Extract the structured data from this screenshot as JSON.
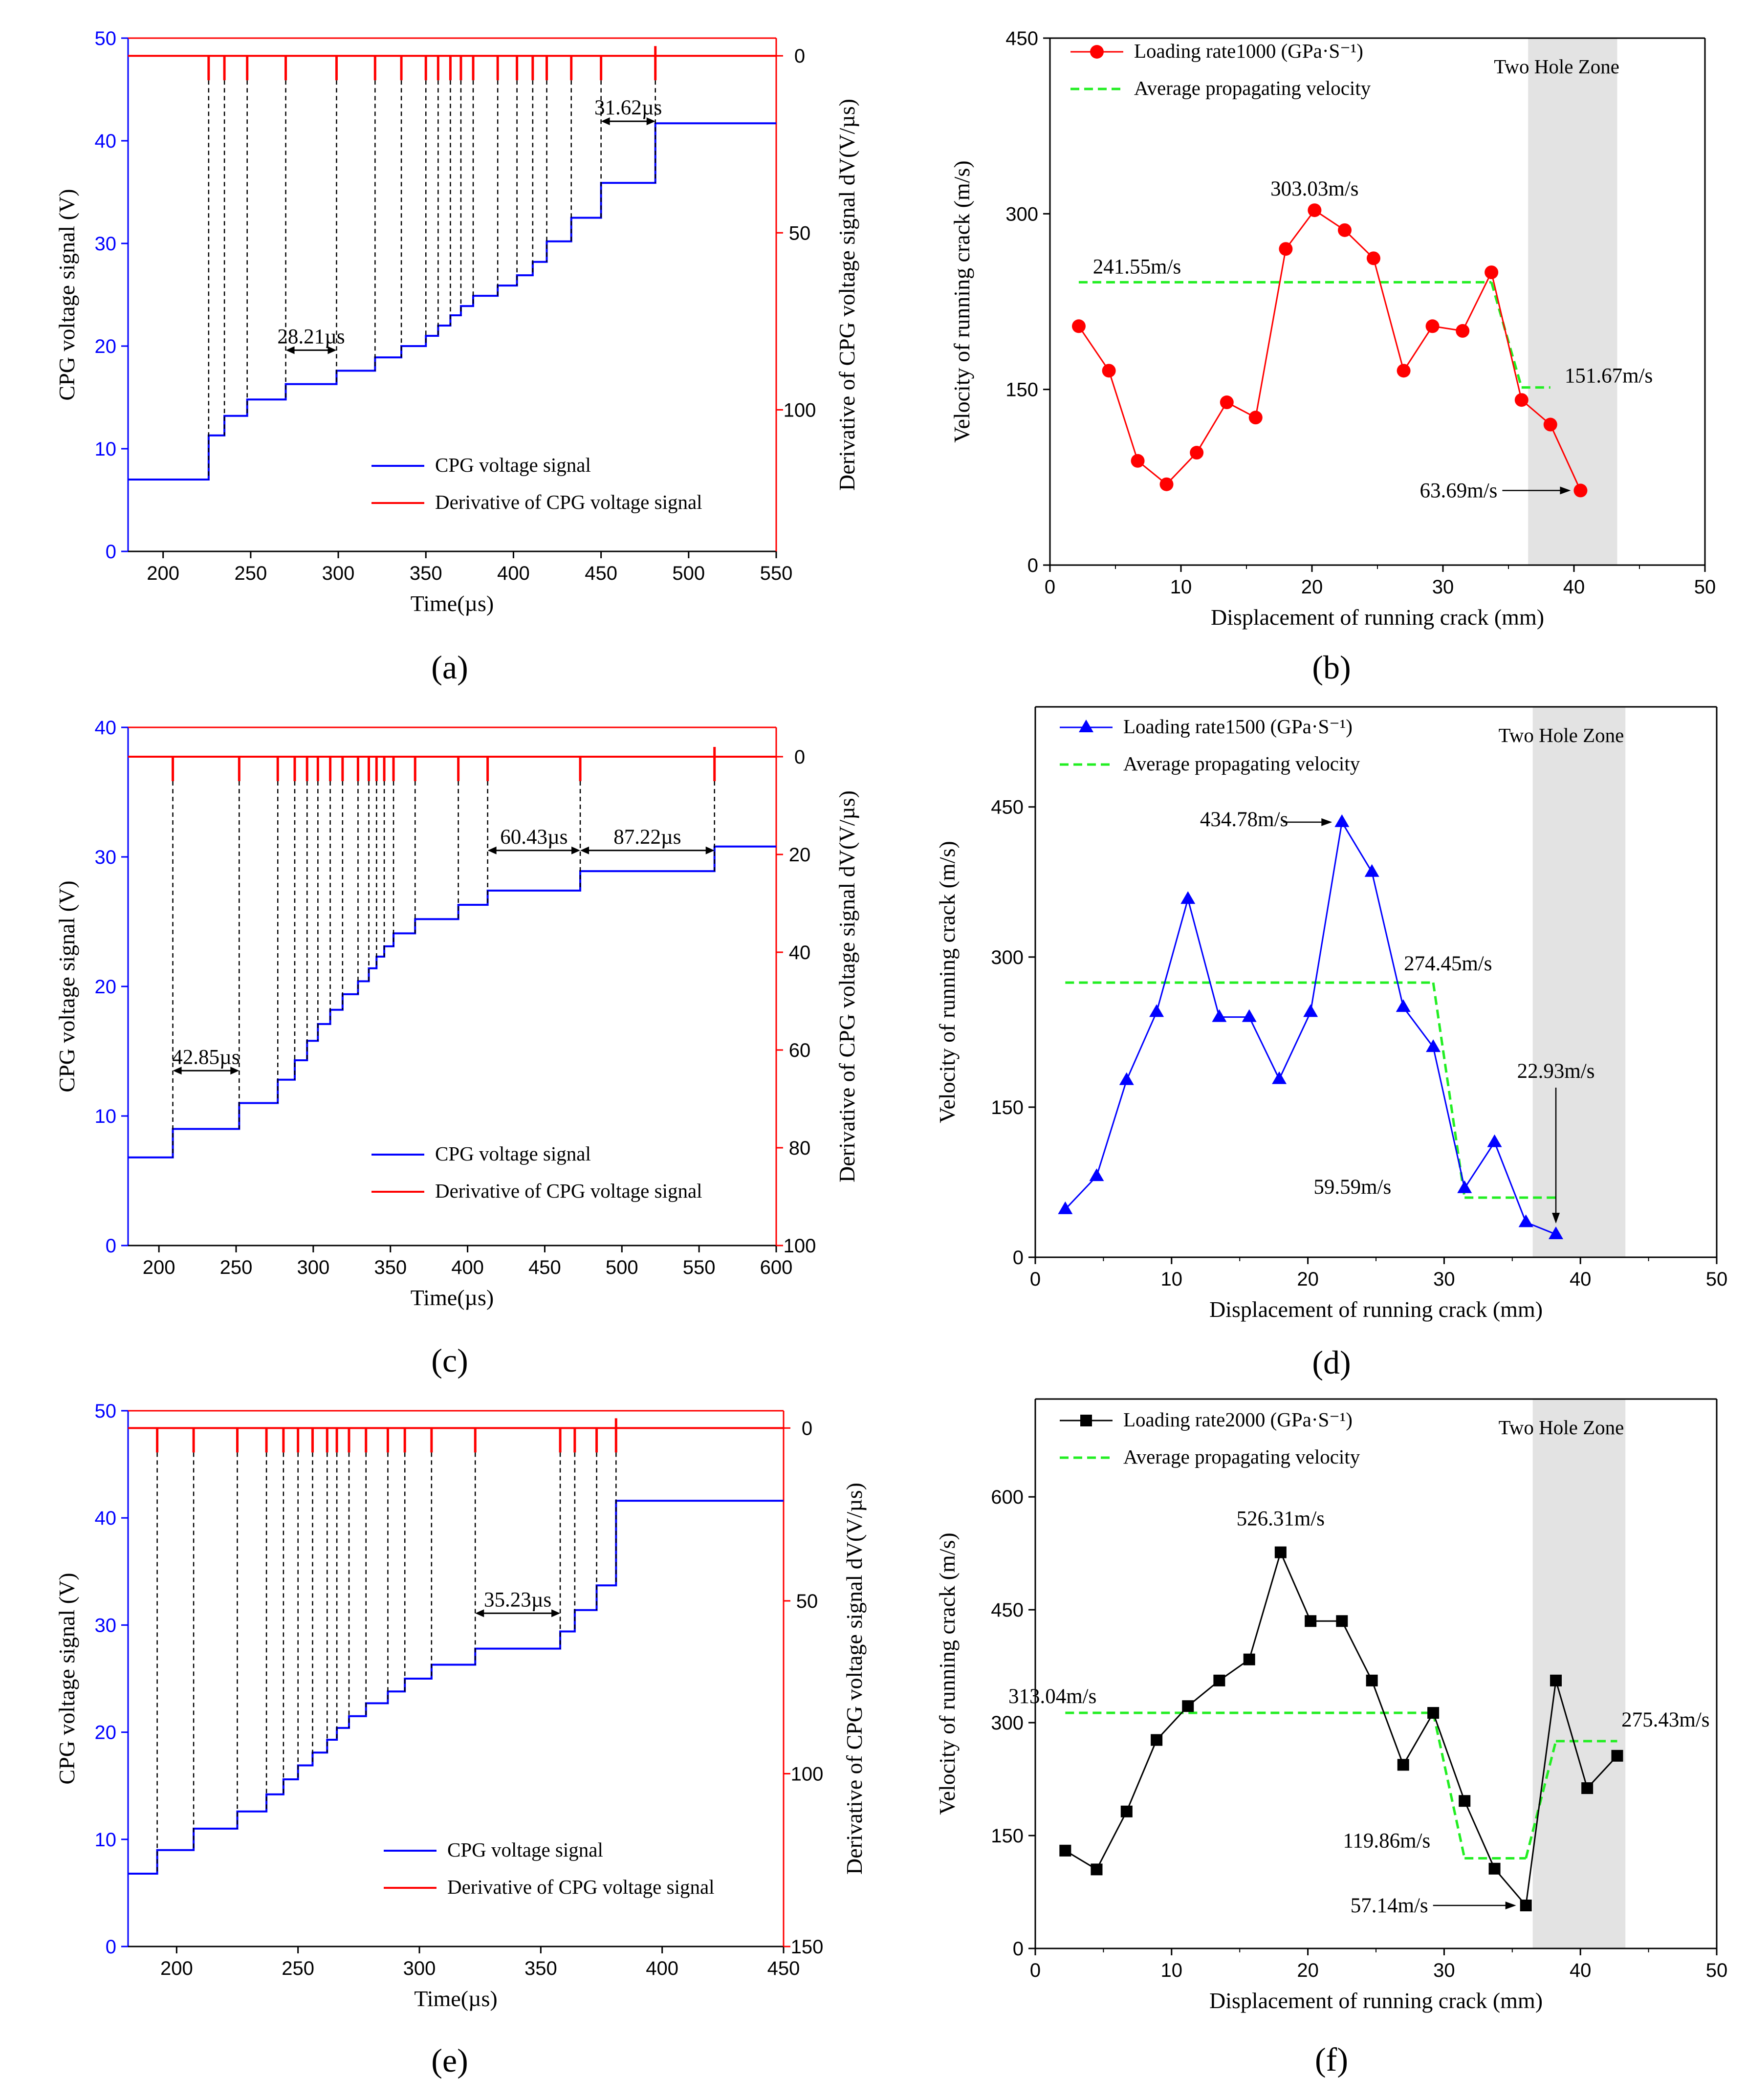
{
  "chart_data": [
    {
      "id": "a",
      "type": "step_line_dual_axis",
      "panel_label": "(a)",
      "xlabel": "Time(µs)",
      "ylabel": "CPG voltage signal (V)",
      "ylabel_right": "Derivative of CPG voltage signal dV(V/µs)",
      "xlim": [
        180,
        550
      ],
      "xticks": [
        200,
        250,
        300,
        350,
        400,
        450,
        500,
        550
      ],
      "ylim": [
        0,
        50
      ],
      "yticks": [
        0,
        10,
        20,
        30,
        40,
        50
      ],
      "ylim_right": [
        -5,
        140
      ],
      "yticks_right": [
        0,
        50,
        100
      ],
      "legend": [
        "CPG voltage signal",
        "Derivative of CPG voltage signal"
      ],
      "steps": [
        {
          "t": 180,
          "v": 7.0
        },
        {
          "t": 226,
          "v": 11.3
        },
        {
          "t": 235,
          "v": 13.2
        },
        {
          "t": 248,
          "v": 14.8
        },
        {
          "t": 270,
          "v": 16.3
        },
        {
          "t": 299,
          "v": 17.6
        },
        {
          "t": 321,
          "v": 18.9
        },
        {
          "t": 336,
          "v": 20.0
        },
        {
          "t": 350,
          "v": 21.0
        },
        {
          "t": 357,
          "v": 22.0
        },
        {
          "t": 364,
          "v": 23.0
        },
        {
          "t": 370,
          "v": 23.9
        },
        {
          "t": 377,
          "v": 24.9
        },
        {
          "t": 391,
          "v": 25.9
        },
        {
          "t": 402,
          "v": 26.9
        },
        {
          "t": 411,
          "v": 28.2
        },
        {
          "t": 419,
          "v": 30.2
        },
        {
          "t": 433,
          "v": 32.5
        },
        {
          "t": 450,
          "v": 35.9
        },
        {
          "t": 481,
          "v": 41.7
        }
      ],
      "spike_depth": 7,
      "spike_dir": "down",
      "annotations": [
        {
          "text": "28.21µs",
          "from": 270,
          "to": 299,
          "y": 19.6
        },
        {
          "text": "31.62µs",
          "from": 450,
          "to": 481,
          "y": 41.9
        }
      ]
    },
    {
      "id": "b",
      "type": "line",
      "panel_label": "(b)",
      "xlabel": "Displacement of running crack (mm)",
      "ylabel": "Velocity of running crack (m/s)",
      "xlim": [
        0,
        50
      ],
      "xticks": [
        0,
        10,
        20,
        30,
        40,
        50
      ],
      "ylim": [
        0,
        450
      ],
      "yticks": [
        0,
        150,
        300,
        450
      ],
      "color": "#ff0000",
      "marker": "circle",
      "legend": [
        "Loading rate1000 (GPa·S⁻¹)",
        "Average propagating velocity"
      ],
      "zone_label": "Two Hole Zone",
      "zone_range": [
        36.5,
        43.3
      ],
      "series": {
        "x": [
          2.2,
          4.5,
          6.7,
          8.9,
          11.2,
          13.5,
          15.7,
          18.0,
          20.2,
          22.5,
          24.7,
          27.0,
          29.2,
          31.5,
          33.7,
          36.0,
          38.2,
          40.5
        ],
        "y": [
          204,
          166,
          89,
          69,
          96,
          139,
          126,
          270,
          303.03,
          286,
          262,
          166,
          204,
          200,
          250,
          141,
          120,
          63.69
        ]
      },
      "average": [
        {
          "x": [
            2.2,
            33.7
          ],
          "y": 241.55
        },
        {
          "x": [
            36.0,
            38.2
          ],
          "y": 151.67
        }
      ],
      "annotations": [
        {
          "text": "303.03m/s",
          "x": 20.2,
          "y": 303.03
        },
        {
          "text": "241.55m/s",
          "x": 10,
          "y": 241.55
        },
        {
          "text": "151.67m/s",
          "x": 36.3,
          "y": 151.67
        },
        {
          "text": "63.69m/s",
          "x": 40.5,
          "y": 63.69
        }
      ]
    },
    {
      "id": "c",
      "type": "step_line_dual_axis",
      "panel_label": "(c)",
      "xlabel": "Time(µs)",
      "ylabel": "CPG voltage signal (V)",
      "ylabel_right": "Derivative of CPG voltage signal dV(V/µs)",
      "xlim": [
        180,
        600
      ],
      "xticks": [
        200,
        250,
        300,
        350,
        400,
        450,
        500,
        550,
        600
      ],
      "ylim": [
        0,
        40
      ],
      "yticks": [
        0,
        10,
        20,
        30,
        40
      ],
      "ylim_right": [
        -6,
        100
      ],
      "yticks_right": [
        0,
        20,
        40,
        60,
        80,
        100
      ],
      "legend": [
        "CPG voltage signal",
        "Derivative of CPG voltage signal"
      ],
      "steps": [
        {
          "t": 180,
          "v": 6.8
        },
        {
          "t": 209,
          "v": 9.0
        },
        {
          "t": 252,
          "v": 11.0
        },
        {
          "t": 277,
          "v": 12.8
        },
        {
          "t": 288,
          "v": 14.3
        },
        {
          "t": 296,
          "v": 15.8
        },
        {
          "t": 303,
          "v": 17.1
        },
        {
          "t": 311,
          "v": 18.2
        },
        {
          "t": 319,
          "v": 19.4
        },
        {
          "t": 329,
          "v": 20.4
        },
        {
          "t": 336,
          "v": 21.4
        },
        {
          "t": 341,
          "v": 22.3
        },
        {
          "t": 346,
          "v": 23.1
        },
        {
          "t": 352,
          "v": 24.1
        },
        {
          "t": 366,
          "v": 25.2
        },
        {
          "t": 394,
          "v": 26.3
        },
        {
          "t": 413,
          "v": 27.4
        },
        {
          "t": 473,
          "v": 28.9
        },
        {
          "t": 560,
          "v": 30.8
        }
      ],
      "spike_depth": 5,
      "spike_dir": "down",
      "annotations": [
        {
          "text": "42.85µs",
          "from": 209,
          "to": 252,
          "y": 13.5
        },
        {
          "text": "60.43µs",
          "from": 413,
          "to": 473,
          "y": 30.5
        },
        {
          "text": "87.22µs",
          "from": 473,
          "to": 560,
          "y": 30.5
        }
      ]
    },
    {
      "id": "d",
      "type": "line",
      "panel_label": "(d)",
      "xlabel": "Displacement of running crack (mm)",
      "ylabel": "Velocity of running crack (m/s)",
      "xlim": [
        0,
        50
      ],
      "xticks": [
        0,
        10,
        20,
        30,
        40,
        50
      ],
      "ylim": [
        0,
        550
      ],
      "yticks": [
        0,
        150,
        300,
        450
      ],
      "color": "#0000ff",
      "marker": "triangle",
      "legend": [
        "Loading rate1500 (GPa·S⁻¹)",
        "Average propagating velocity"
      ],
      "zone_label": "Two Hole Zone",
      "zone_range": [
        36.5,
        43.3
      ],
      "series": {
        "x": [
          2.2,
          4.5,
          6.7,
          8.9,
          11.2,
          13.5,
          15.7,
          17.9,
          20.2,
          22.5,
          24.7,
          27.0,
          29.2,
          31.5,
          33.7,
          36.0,
          38.2
        ],
        "y": [
          48,
          81,
          177,
          245,
          358,
          240,
          240,
          178,
          245,
          434.78,
          385,
          250,
          210,
          69,
          115,
          35,
          22.93
        ]
      },
      "average": [
        {
          "x": [
            2.2,
            29.2
          ],
          "y": 274.45
        },
        {
          "x": [
            31.5,
            38.2
          ],
          "y": 59.59
        }
      ],
      "annotations": [
        {
          "text": "434.78m/s",
          "x": 22.5,
          "y": 434.78
        },
        {
          "text": "274.45m/s",
          "x": 29.2,
          "y": 274.45
        },
        {
          "text": "59.59m/s",
          "x": 31.5,
          "y": 59.59
        },
        {
          "text": "22.93m/s",
          "x": 38.2,
          "y": 22.93
        }
      ]
    },
    {
      "id": "e",
      "type": "step_line_dual_axis",
      "panel_label": "(e)",
      "xlabel": "Time(µs)",
      "ylabel": "CPG voltage signal (V)",
      "ylabel_right": "Derivative of CPG voltage signal dV(V/µs)",
      "xlim": [
        180,
        450
      ],
      "xticks": [
        200,
        250,
        300,
        350,
        400,
        450
      ],
      "ylim": [
        0,
        50
      ],
      "yticks": [
        0,
        10,
        20,
        30,
        40,
        50
      ],
      "ylim_right": [
        -5,
        150
      ],
      "yticks_right": [
        0,
        50,
        100,
        150
      ],
      "legend": [
        "CPG voltage signal",
        "Derivative of CPG voltage signal"
      ],
      "steps": [
        {
          "t": 180,
          "v": 6.8
        },
        {
          "t": 192,
          "v": 9.0
        },
        {
          "t": 207,
          "v": 11.0
        },
        {
          "t": 225,
          "v": 12.6
        },
        {
          "t": 237,
          "v": 14.2
        },
        {
          "t": 244,
          "v": 15.6
        },
        {
          "t": 250,
          "v": 16.9
        },
        {
          "t": 256,
          "v": 18.1
        },
        {
          "t": 262,
          "v": 19.3
        },
        {
          "t": 266,
          "v": 20.4
        },
        {
          "t": 271,
          "v": 21.5
        },
        {
          "t": 278,
          "v": 22.7
        },
        {
          "t": 287,
          "v": 23.8
        },
        {
          "t": 294,
          "v": 25.0
        },
        {
          "t": 305,
          "v": 26.3
        },
        {
          "t": 323,
          "v": 27.8
        },
        {
          "t": 358,
          "v": 29.4
        },
        {
          "t": 364,
          "v": 31.4
        },
        {
          "t": 373,
          "v": 33.7
        },
        {
          "t": 381,
          "v": 41.6
        }
      ],
      "spike_depth": 4,
      "spike_dir": "down",
      "annotations": [
        {
          "text": "35.23µs",
          "from": 323,
          "to": 358,
          "y": 31.1
        }
      ]
    },
    {
      "id": "f",
      "type": "line",
      "panel_label": "(f)",
      "xlabel": "Displacement of running crack (mm)",
      "ylabel": "Velocity of running crack (m/s)",
      "xlim": [
        0,
        50
      ],
      "xticks": [
        0,
        10,
        20,
        30,
        40,
        50
      ],
      "ylim": [
        0,
        730
      ],
      "yticks": [
        0,
        150,
        300,
        450,
        600
      ],
      "color": "#000000",
      "marker": "square",
      "legend": [
        "Loading rate2000 (GPa·S⁻¹)",
        "Average propagating velocity"
      ],
      "zone_label": "Two Hole Zone",
      "zone_range": [
        36.5,
        43.3
      ],
      "series": {
        "x": [
          2.2,
          4.5,
          6.7,
          8.9,
          11.2,
          13.5,
          15.7,
          18.0,
          20.2,
          22.5,
          24.7,
          27.0,
          29.2,
          31.5,
          33.7,
          36.0,
          38.2,
          40.5,
          42.7
        ],
        "y": [
          130,
          105,
          182,
          277,
          322,
          356,
          384,
          526.31,
          435,
          435,
          356,
          244,
          313,
          196,
          106,
          57.14,
          356,
          213,
          256
        ]
      },
      "average": [
        {
          "x": [
            2.2,
            29.2
          ],
          "y": 313.04
        },
        {
          "x": [
            31.5,
            36.0
          ],
          "y": 119.86
        },
        {
          "x": [
            38.2,
            42.7
          ],
          "y": 275.43
        }
      ],
      "annotations": [
        {
          "text": "526.31m/s",
          "x": 18.0,
          "y": 526.31
        },
        {
          "text": "313.04m/s",
          "x": 7,
          "y": 313.04
        },
        {
          "text": "119.86m/s",
          "x": 31.5,
          "y": 119.86
        },
        {
          "text": "57.14m/s",
          "x": 36.0,
          "y": 57.14
        },
        {
          "text": "275.43m/s",
          "x": 40.5,
          "y": 275.43
        }
      ]
    }
  ]
}
